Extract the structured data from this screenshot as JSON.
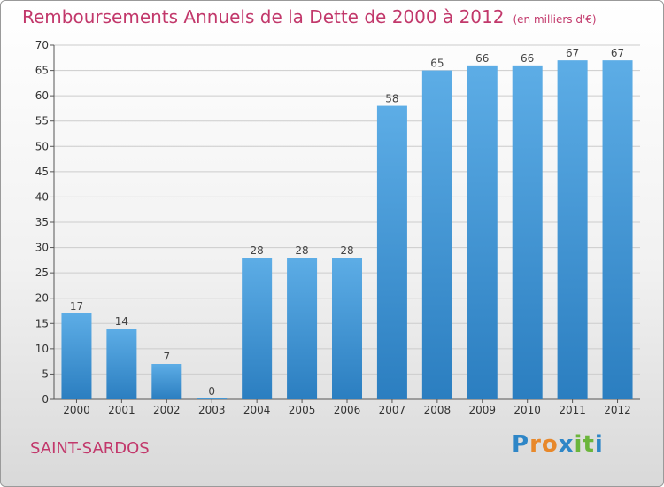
{
  "header": {
    "title": "Remboursements Annuels de la Dette de 2000 à 2012",
    "subtitle": "(en milliers d'€)"
  },
  "footer": {
    "town": "SAINT-SARDOS",
    "logo_text": "Proxiti",
    "logo_letter_colors": [
      "#2e86c7",
      "#e8882a",
      "#e8882a",
      "#2e86c7",
      "#6bb53b",
      "#6bb53b",
      "#2e86c7"
    ]
  },
  "colors": {
    "title": "#c2386b",
    "bar_light": "#5dade6",
    "bar_dark": "#2b7ec0",
    "grid": "#cccccc"
  },
  "chart_data": {
    "type": "bar",
    "title": "Remboursements Annuels de la Dette de 2000 à 2012",
    "subtitle": "(en milliers d'€)",
    "categories": [
      "2000",
      "2001",
      "2002",
      "2003",
      "2004",
      "2005",
      "2006",
      "2007",
      "2008",
      "2009",
      "2010",
      "2011",
      "2012"
    ],
    "values": [
      17,
      14,
      7,
      0,
      28,
      28,
      28,
      58,
      65,
      66,
      66,
      67,
      67
    ],
    "ylim": [
      0,
      70
    ],
    "yticks": [
      0,
      5,
      10,
      15,
      20,
      25,
      30,
      35,
      40,
      45,
      50,
      55,
      60,
      65,
      70
    ],
    "grid": true,
    "data_labels": true
  }
}
